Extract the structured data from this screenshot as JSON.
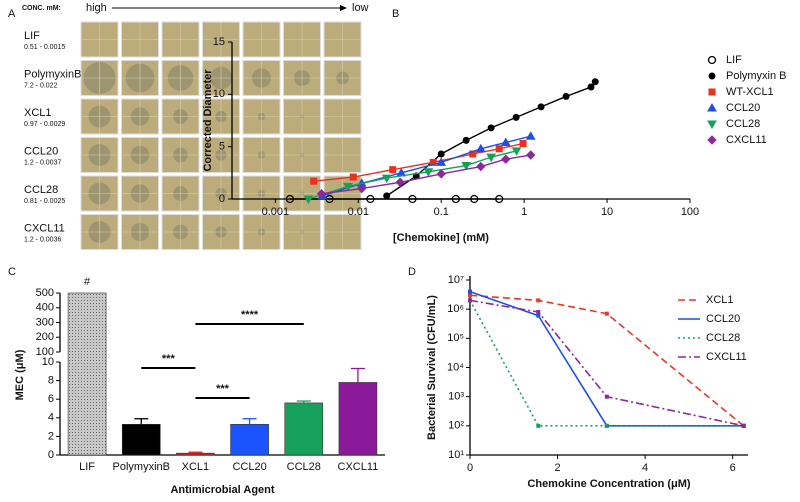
{
  "panel_a": {
    "panel_label": "A",
    "conc_label": "CONC. mM:",
    "high": "high",
    "low": "low",
    "rows": [
      {
        "name": "LIF",
        "range": "0.51 - 0.0015"
      },
      {
        "name": "PolymyxinB",
        "range": "7.2 - 0.022"
      },
      {
        "name": "XCL1",
        "range": "0.97 - 0.0029"
      },
      {
        "name": "CCL20",
        "range": "1.2 - 0.0037"
      },
      {
        "name": "CCL28",
        "range": "0.81 - 0.0025"
      },
      {
        "name": "CXCL11",
        "range": "1.2 - 0.0036"
      }
    ]
  },
  "chart_data": [
    {
      "type": "scatter",
      "panel_label": "B",
      "x_label": "[Chemokine] (mM)",
      "y_label": "Corrected Diameter",
      "xscale": "log",
      "xlim": [
        0.0003,
        100
      ],
      "xticks": [
        0.001,
        0.01,
        0.1,
        1,
        10,
        100
      ],
      "ylim": [
        0,
        15
      ],
      "yticks": [
        0,
        5,
        10,
        15
      ],
      "legend": "right",
      "series": [
        {
          "name": "LIF",
          "color": "#000000",
          "marker": "circle-open",
          "x": [
            0.0015,
            0.0045,
            0.014,
            0.045,
            0.15,
            0.25,
            0.5
          ],
          "values": [
            0,
            0,
            0,
            0,
            0,
            0,
            0
          ]
        },
        {
          "name": "Polymyxin B",
          "color": "#000000",
          "marker": "circle",
          "x": [
            0.022,
            0.05,
            0.1,
            0.2,
            0.4,
            0.8,
            1.6,
            3.2,
            6.4,
            7.2
          ],
          "values": [
            0.3,
            2.2,
            4.3,
            5.6,
            6.8,
            7.8,
            8.8,
            9.8,
            10.7,
            11.2
          ]
        },
        {
          "name": "WT-XCL1",
          "color": "#e8321e",
          "marker": "square",
          "x": [
            0.0029,
            0.0087,
            0.026,
            0.08,
            0.24,
            0.5,
            0.97
          ],
          "values": [
            1.7,
            2.1,
            2.8,
            3.5,
            4.3,
            4.8,
            5.3
          ]
        },
        {
          "name": "CCL20",
          "color": "#1f4fe8",
          "marker": "triangle",
          "x": [
            0.0037,
            0.011,
            0.033,
            0.1,
            0.3,
            0.6,
            1.2
          ],
          "values": [
            0.3,
            1.5,
            2.5,
            3.5,
            4.8,
            5.4,
            6.0
          ]
        },
        {
          "name": "CCL28",
          "color": "#17a05a",
          "marker": "triangle-down",
          "x": [
            0.0025,
            0.0075,
            0.022,
            0.07,
            0.2,
            0.4,
            0.81
          ],
          "values": [
            0,
            1.2,
            2.0,
            2.6,
            3.2,
            4.0,
            4.6
          ]
        },
        {
          "name": "CXCL11",
          "color": "#8a2a9a",
          "marker": "diamond",
          "x": [
            0.0036,
            0.011,
            0.032,
            0.1,
            0.3,
            0.6,
            1.2
          ],
          "values": [
            0.5,
            1.0,
            1.6,
            2.4,
            3.1,
            3.8,
            4.2
          ]
        }
      ]
    },
    {
      "type": "bar",
      "panel_label": "C",
      "x_label": "Antimicrobial Agent",
      "y_label": "MEC (μM)",
      "ylim": [
        0,
        500
      ],
      "ybreak": [
        10,
        100
      ],
      "yticks": [
        0,
        2,
        4,
        6,
        8,
        10,
        100,
        200,
        300,
        400,
        500
      ],
      "categories": [
        "LIF",
        "PolymyxinB",
        "XCL1",
        "CCL20",
        "CCL28",
        "CXCL11"
      ],
      "values": [
        500,
        3.3,
        0.2,
        3.3,
        5.6,
        7.8
      ],
      "errors": [
        0,
        0.6,
        0.1,
        0.6,
        0.2,
        1.5
      ],
      "colors": [
        "#bdbdbd",
        "#000000",
        "#e02020",
        "#1a53ff",
        "#17a05a",
        "#8a1a9a"
      ],
      "annotations": [
        {
          "label": "#",
          "at": 0
        },
        {
          "label": "***",
          "from": 1,
          "to": 2
        },
        {
          "label": "****",
          "from": 2,
          "to": 4
        },
        {
          "label": "***",
          "from": 2,
          "to": 3
        }
      ]
    },
    {
      "type": "line",
      "panel_label": "D",
      "x_label": "Chemokine Concentration (μM)",
      "y_label": "Bacterial Survival (CFU/mL)",
      "yscale": "log",
      "xlim": [
        0,
        6.35
      ],
      "xticks": [
        0,
        2,
        4,
        6
      ],
      "ylim": [
        10,
        10000000
      ],
      "yticks": [
        {
          "value": 10,
          "label": "10¹"
        },
        {
          "value": 100,
          "label": "10²"
        },
        {
          "value": 1000,
          "label": "10³"
        },
        {
          "value": 10000,
          "label": "10⁴"
        },
        {
          "value": 100000,
          "label": "10⁵"
        },
        {
          "value": 1000000,
          "label": "10⁶"
        },
        {
          "value": 10000000,
          "label": "10⁷"
        }
      ],
      "legend": "upper right",
      "series": [
        {
          "name": "XCL1",
          "color": "#e03a2a",
          "dash": "7 4",
          "x": [
            0,
            1.56,
            3.125,
            6.25
          ],
          "values": [
            3000000,
            2000000,
            700000,
            100
          ]
        },
        {
          "name": "CCL20",
          "color": "#1f4fe8",
          "dash": "",
          "x": [
            0,
            1.56,
            3.125,
            6.25
          ],
          "values": [
            4000000,
            600000,
            100,
            100
          ]
        },
        {
          "name": "CCL28",
          "color": "#17a05a",
          "dash": "2 3",
          "x": [
            0,
            1.56,
            3.125,
            6.25
          ],
          "values": [
            2000000,
            100,
            100,
            100
          ]
        },
        {
          "name": "CXCL11",
          "color": "#8a2a9a",
          "dash": "8 3 2 3",
          "x": [
            0,
            1.56,
            3.125,
            6.25
          ],
          "values": [
            2000000,
            800000,
            1000,
            100
          ]
        }
      ]
    }
  ]
}
